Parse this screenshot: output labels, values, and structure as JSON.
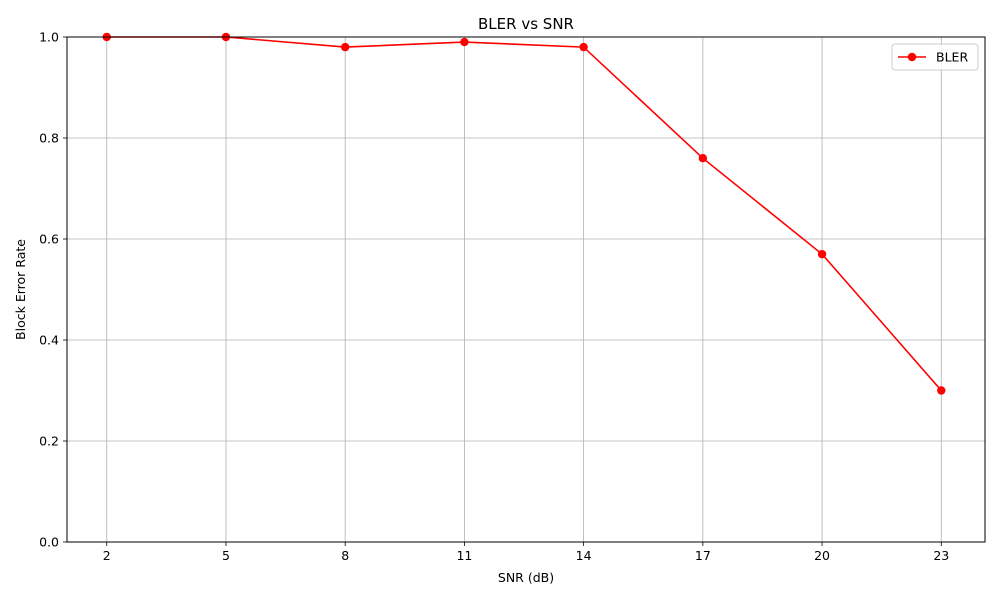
{
  "chart_data": {
    "type": "line",
    "title": "BLER vs SNR",
    "xlabel": "SNR (dB)",
    "ylabel": "Block Error Rate",
    "x": [
      2,
      5,
      8,
      11,
      14,
      17,
      20,
      23
    ],
    "x_tick_labels": [
      "2",
      "5",
      "8",
      "11",
      "14",
      "17",
      "20",
      "23"
    ],
    "y_ticks": [
      0.0,
      0.2,
      0.4,
      0.6,
      0.8,
      1.0
    ],
    "y_tick_labels": [
      "0.0",
      "0.2",
      "0.4",
      "0.6",
      "0.8",
      "1.0"
    ],
    "xlim": [
      1,
      24.1
    ],
    "ylim": [
      0,
      1
    ],
    "grid": true,
    "legend_position": "top-right",
    "series": [
      {
        "name": "BLER",
        "color": "#ff0000",
        "marker": "circle",
        "values": [
          1.0,
          1.0,
          0.98,
          0.99,
          0.98,
          0.76,
          0.57,
          0.3
        ]
      }
    ]
  }
}
